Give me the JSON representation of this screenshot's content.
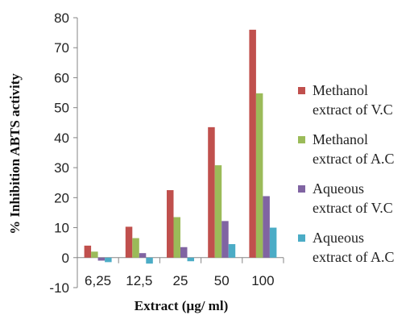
{
  "chart_data": {
    "type": "bar",
    "title": "",
    "xlabel": "Extract (µg/ ml)",
    "ylabel": "% Inhibition ABTS activity",
    "ylim": [
      -10,
      80
    ],
    "yticks": [
      "-10",
      "0",
      "10",
      "20",
      "30",
      "40",
      "50",
      "60",
      "70",
      "80"
    ],
    "categories": [
      "6,25",
      "12,5",
      "25",
      "50",
      "100"
    ],
    "grid": false,
    "legend_position": "right",
    "series": [
      {
        "name": "Methanol extract of V.C",
        "legend_lines": [
          "Methanol",
          "extract of V.C"
        ],
        "color": "#C0504D",
        "values": [
          4,
          10.3,
          22.5,
          43.5,
          76
        ]
      },
      {
        "name": "Methanol extract of A.C",
        "legend_lines": [
          "Methanol",
          "extract of A.C"
        ],
        "color": "#9BBB59",
        "values": [
          2,
          6.5,
          13.5,
          30.8,
          54.8
        ]
      },
      {
        "name": "Aqueous extract of V.C",
        "legend_lines": [
          "Aqueous",
          "extract of V.C"
        ],
        "color": "#8064A2",
        "values": [
          -1,
          1.5,
          3.5,
          12.2,
          20.5
        ]
      },
      {
        "name": "Aqueous extract of A.C",
        "legend_lines": [
          "Aqueous",
          "extract of A.C"
        ],
        "color": "#4BACC6",
        "values": [
          -1.5,
          -2,
          -1.2,
          4.5,
          10
        ]
      }
    ]
  }
}
